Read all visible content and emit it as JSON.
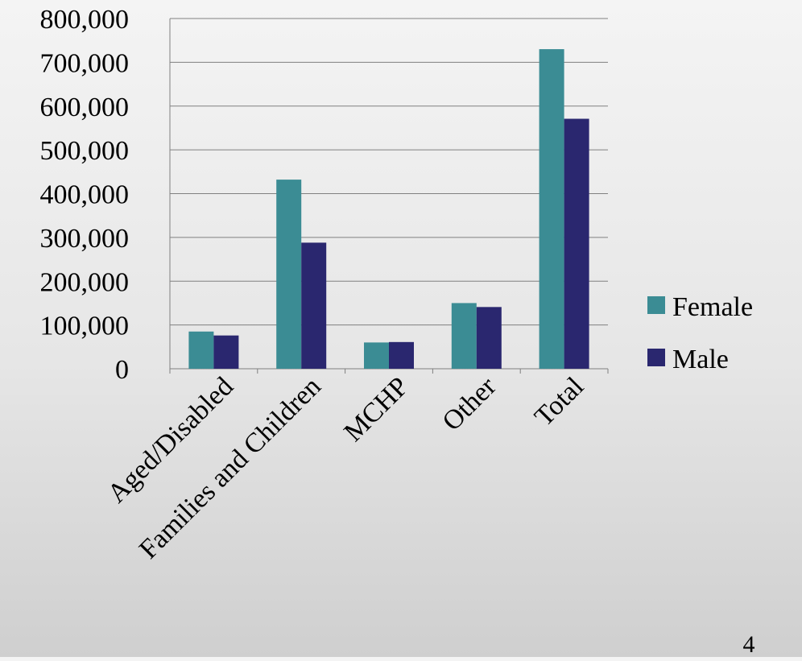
{
  "chart_data": {
    "type": "bar",
    "categories": [
      "Aged/Disabled",
      "Families and Children",
      "MCHP",
      "Other",
      "Total"
    ],
    "series": [
      {
        "name": "Female",
        "values": [
          85000,
          432000,
          60000,
          150000,
          730000
        ],
        "color": "#3b8c94"
      },
      {
        "name": "Male",
        "values": [
          76000,
          288000,
          61000,
          141000,
          571000
        ],
        "color": "#2a276f"
      }
    ],
    "ylim": [
      0,
      800000
    ],
    "yticks": [
      "0",
      "100,000",
      "200,000",
      "300,000",
      "400,000",
      "500,000",
      "600,000",
      "700,000",
      "800,000"
    ],
    "legend_position": "right",
    "grid": true
  },
  "page_number": "4"
}
